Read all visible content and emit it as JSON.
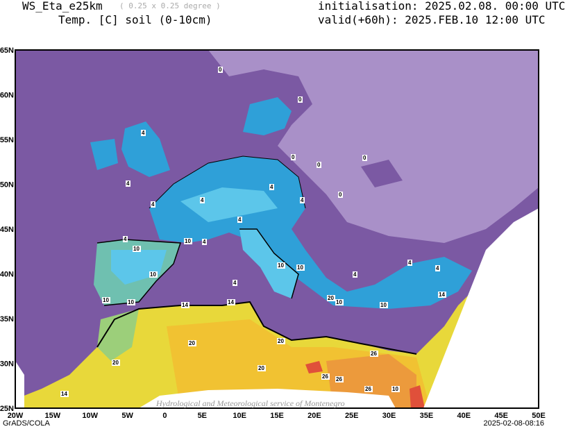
{
  "header": {
    "model": "WS_Eta_e25km",
    "grid": "( 0.25 x 0.25 degree )",
    "variable": "Temp. [C] soil (0-10cm)",
    "initialisation": "initialisation: 2025.02.08. 00:00 UTC",
    "valid": "valid(+60h): 2025.FEB.10 12:00 UTC"
  },
  "axes": {
    "lon_labels": [
      "20W",
      "15W",
      "10W",
      "5W",
      "0",
      "5E",
      "10E",
      "15E",
      "20E",
      "25E",
      "30E",
      "35E",
      "40E",
      "45E",
      "50E"
    ],
    "lat_labels": [
      "65N",
      "60N",
      "55N",
      "50N",
      "45N",
      "40N",
      "35N",
      "30N",
      "25N"
    ]
  },
  "map": {
    "lon_range": [
      -20,
      50
    ],
    "lat_range": [
      25,
      65
    ],
    "colors": {
      "cold": "#a990c8",
      "sea": "#7b59a3",
      "blue": "#2fa0d8",
      "lightblue": "#5cc6ea",
      "teal": "#6fc0b0",
      "green": "#9ccf7a",
      "yellow": "#e8d83a",
      "gold": "#f1c232",
      "orange": "#ec9a3c",
      "red": "#e0503a"
    },
    "contour_labels": [
      "0",
      "0",
      "0",
      "0",
      "0",
      "0",
      "4",
      "4",
      "4",
      "4",
      "4",
      "4",
      "4",
      "4",
      "4",
      "4",
      "4",
      "4",
      "4",
      "10",
      "10",
      "10",
      "10",
      "10",
      "10",
      "10",
      "10",
      "10",
      "14",
      "14",
      "14",
      "20",
      "20",
      "20",
      "20",
      "20",
      "26",
      "26",
      "26",
      "26",
      "10",
      "14"
    ]
  },
  "watermark": "Hydrological and Meteorological service of Montenegro",
  "footer": {
    "left": "GrADS/COLA",
    "right": "2025-02-08-08:16"
  }
}
